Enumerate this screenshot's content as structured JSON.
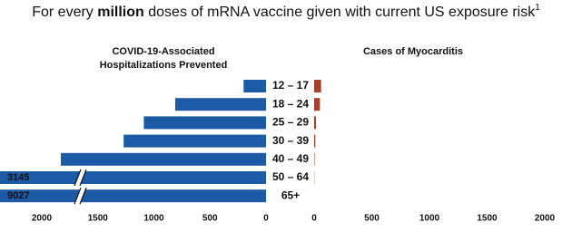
{
  "chart_data": {
    "type": "butterfly",
    "title": [
      "For every ",
      "million",
      " doses of mRNA vaccine given with current US exposure risk",
      "1"
    ],
    "categories": [
      "12 – 17",
      "18 – 24",
      "25 – 29",
      "30 – 39",
      "40 – 49",
      "50 – 64",
      "65+"
    ],
    "series": [
      {
        "name": "COVID-19-Associated Hospitalizations Prevented",
        "color": "#1c5aa6",
        "values": [
          200,
          810,
          1090,
          1270,
          1830,
          3145,
          9027
        ],
        "xlim": [
          2000,
          0
        ],
        "xticks": [
          2000,
          1500,
          1000,
          500,
          0
        ],
        "axis_break": true
      },
      {
        "name": "Cases of Myocarditis",
        "color": "#a5402d",
        "values": [
          60,
          50,
          16,
          10,
          4,
          2,
          0
        ],
        "xlim": [
          0,
          2000
        ],
        "xticks": [
          0,
          500,
          1000,
          1500,
          2000
        ]
      }
    ]
  }
}
